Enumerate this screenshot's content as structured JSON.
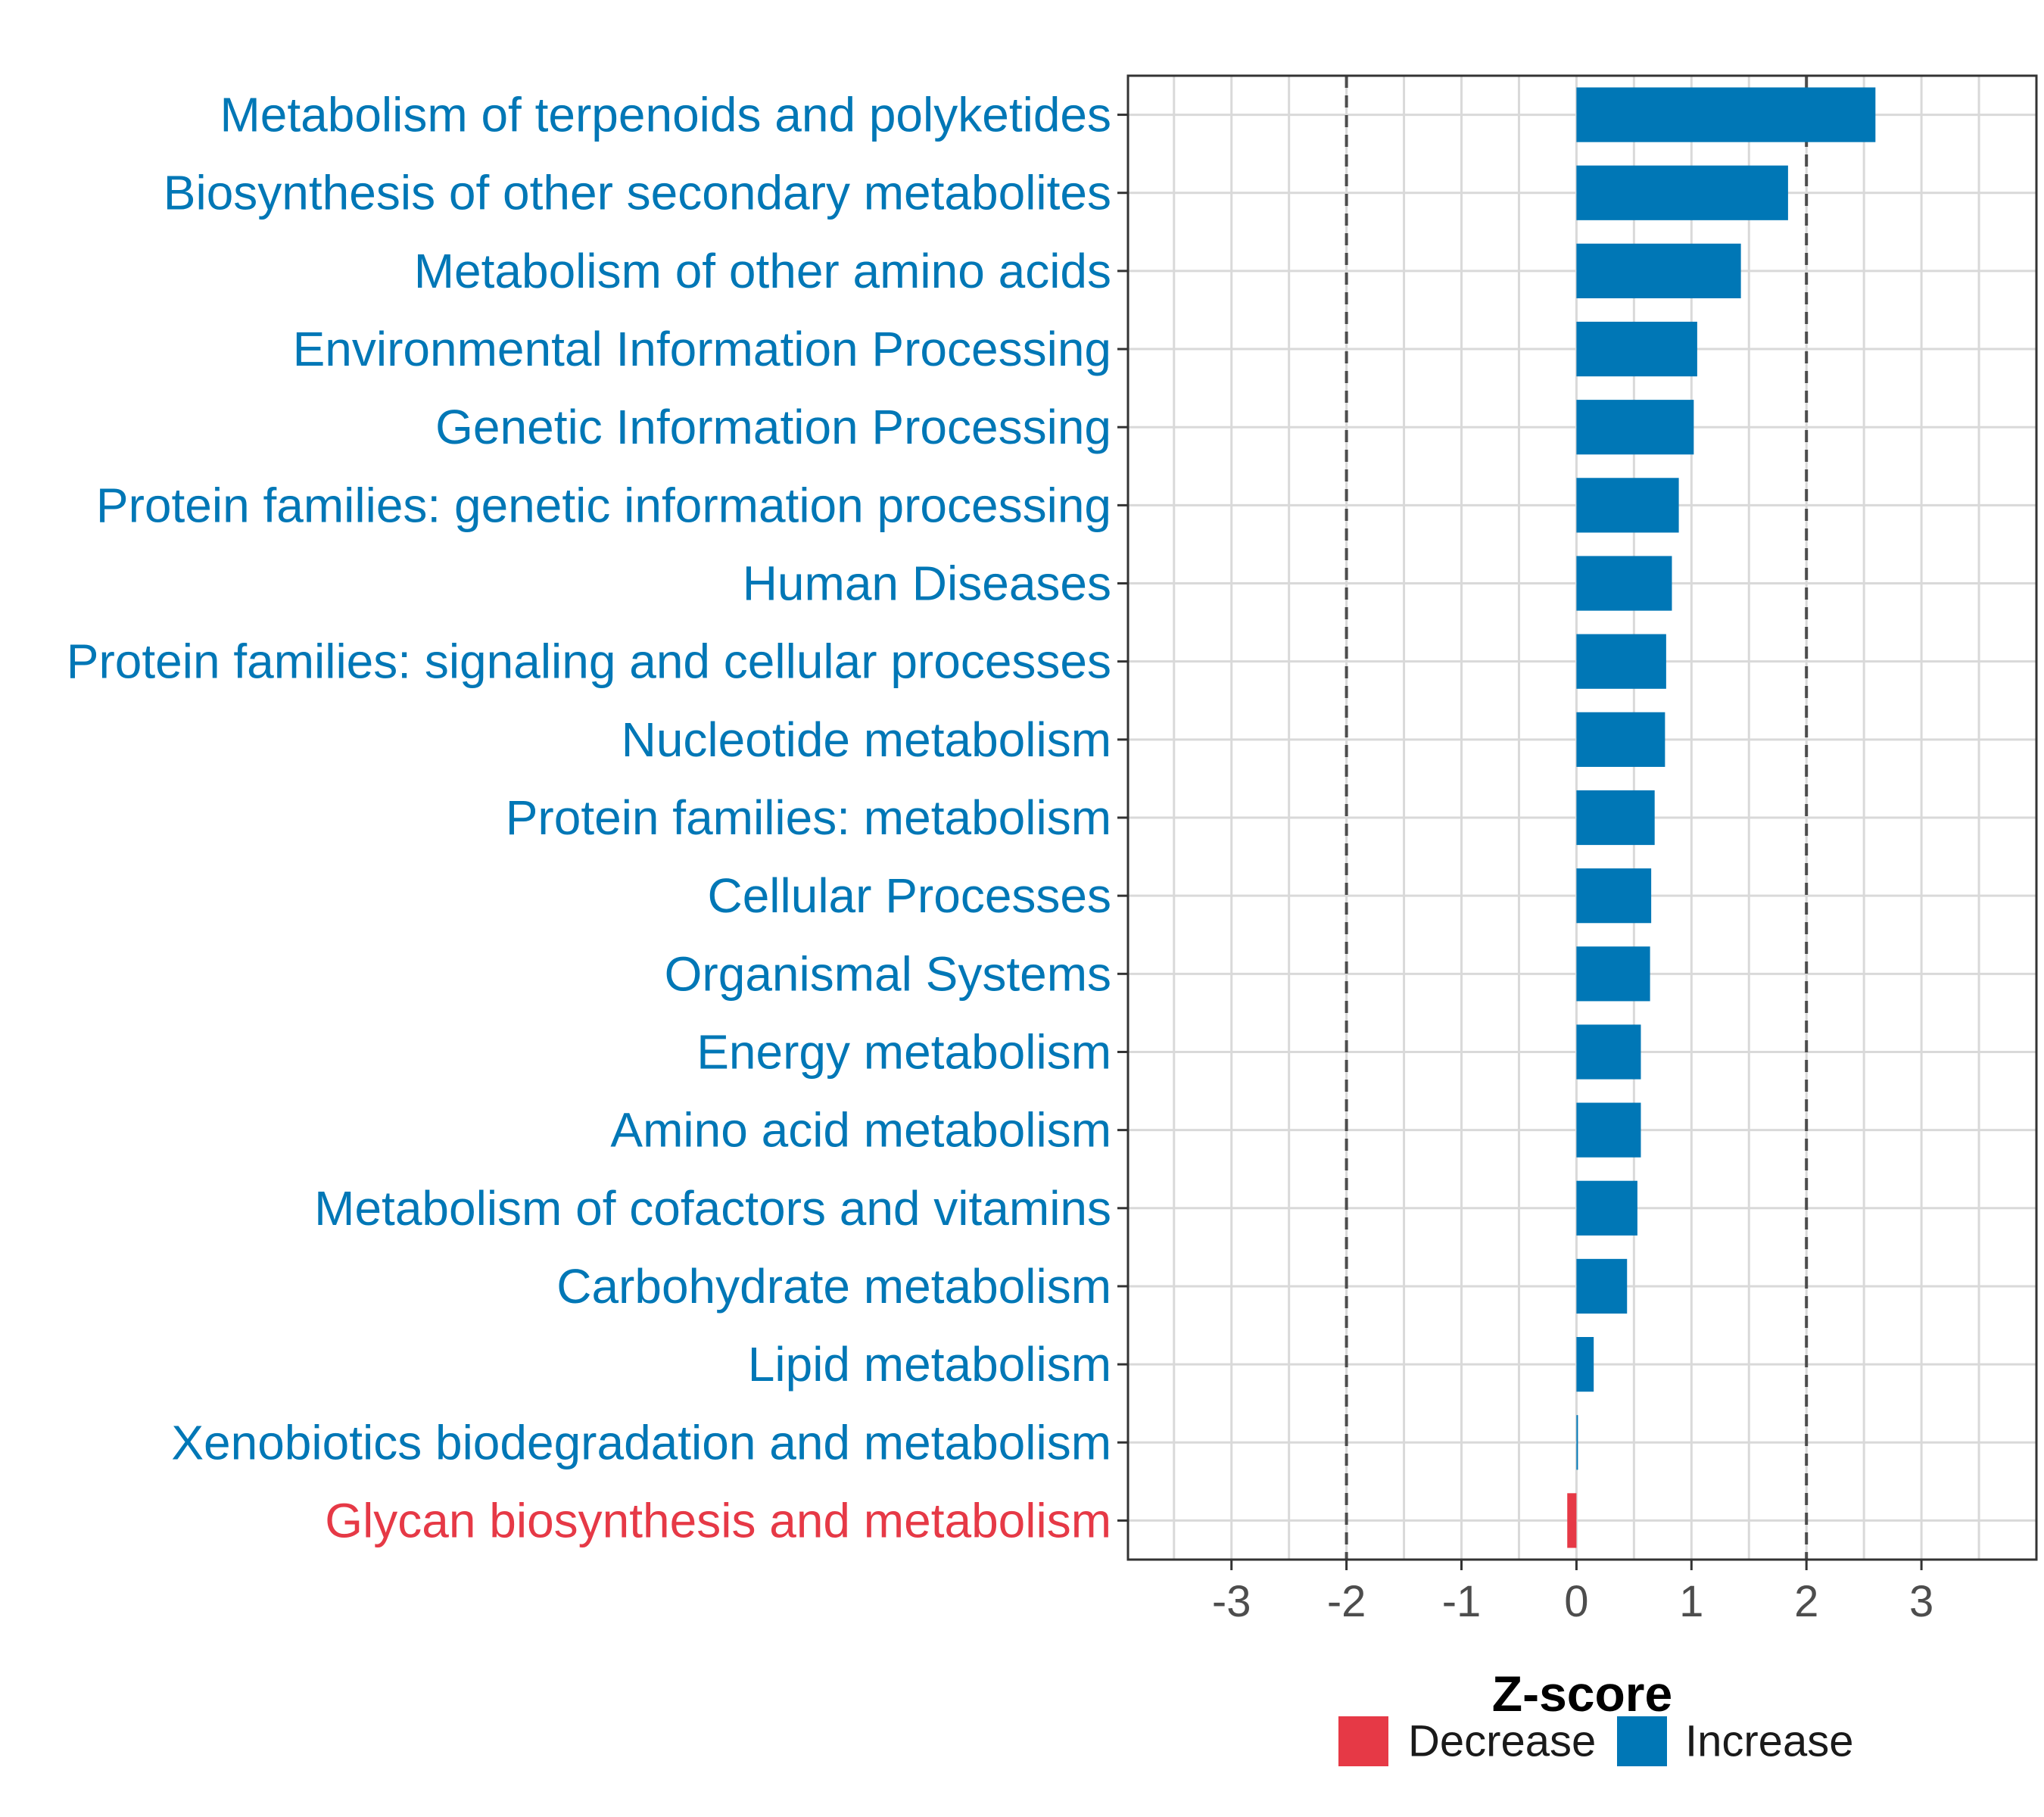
{
  "colors": {
    "increase": "#0077B6",
    "decrease": "#E63946",
    "grid": "#d9d9d9",
    "refline": "#4d4d4d"
  },
  "chart_data": {
    "type": "bar",
    "orientation": "horizontal",
    "xlabel": "Z-score",
    "xlim": [
      -3.9,
      4.0
    ],
    "xticks": [
      -3,
      -2,
      -1,
      0,
      1,
      2,
      3
    ],
    "xtick_labels": [
      "-3",
      "-2",
      "-1",
      "0",
      "1",
      "2",
      "3"
    ],
    "reference_lines": [
      -2,
      2
    ],
    "grid": true,
    "legend_position": "bottom",
    "legend": [
      {
        "name": "Decrease",
        "color": "#E63946"
      },
      {
        "name": "Increase",
        "color": "#0077B6"
      }
    ],
    "categories": [
      "Metabolism of terpenoids and polyketides",
      "Biosynthesis of other secondary metabolites",
      "Metabolism of other amino acids",
      "Environmental Information Processing",
      "Genetic Information Processing",
      "Protein families: genetic information processing",
      "Human Diseases",
      "Protein families: signaling and cellular processes",
      "Nucleotide metabolism",
      "Protein families: metabolism",
      "Cellular Processes",
      "Organismal Systems",
      "Energy metabolism",
      "Amino acid metabolism",
      "Metabolism of cofactors and vitamins",
      "Carbohydrate metabolism",
      "Lipid metabolism",
      "Xenobiotics biodegradation and metabolism",
      "Glycan biosynthesis and metabolism"
    ],
    "values": [
      2.6,
      1.84,
      1.43,
      1.05,
      1.02,
      0.89,
      0.83,
      0.78,
      0.77,
      0.68,
      0.65,
      0.64,
      0.56,
      0.56,
      0.53,
      0.44,
      0.15,
      0.01,
      -0.08
    ],
    "direction": [
      "Increase",
      "Increase",
      "Increase",
      "Increase",
      "Increase",
      "Increase",
      "Increase",
      "Increase",
      "Increase",
      "Increase",
      "Increase",
      "Increase",
      "Increase",
      "Increase",
      "Increase",
      "Increase",
      "Increase",
      "Increase",
      "Decrease"
    ]
  }
}
